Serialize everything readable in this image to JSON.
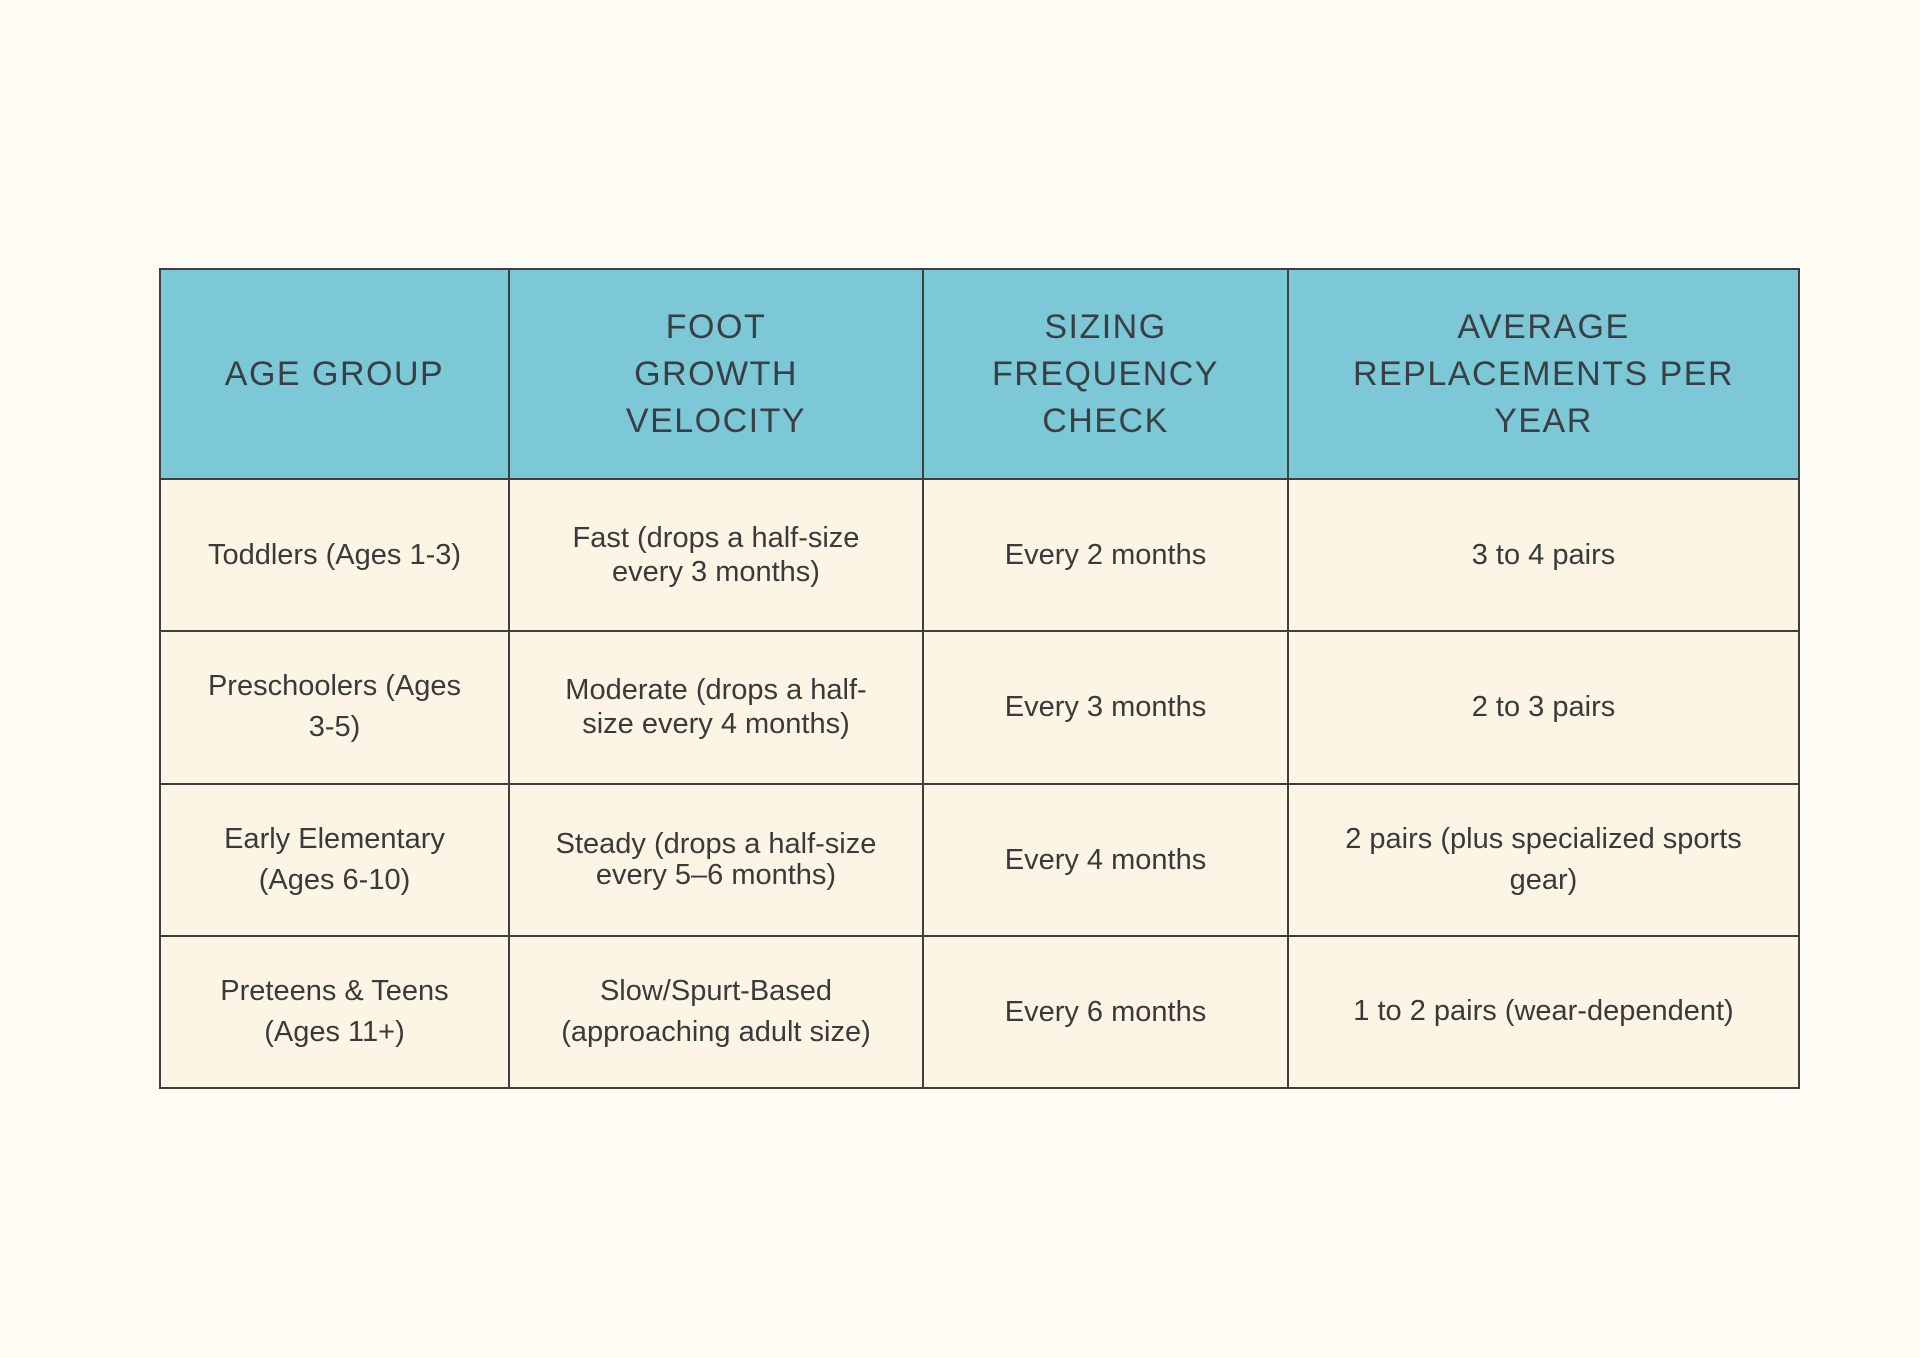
{
  "table": {
    "headers": [
      "AGE GROUP",
      "FOOT GROWTH VELOCITY",
      "SIZING FREQUENCY CHECK",
      "AVERAGE REPLACEMENTS PER YEAR"
    ],
    "rows": [
      [
        "Toddlers (Ages 1-3)",
        "Fast (drops a half-size every 3 months)",
        "Every 2 months",
        "3 to 4 pairs"
      ],
      [
        "Preschoolers (Ages 3-5)",
        "Moderate (drops a half-size every 4 months)",
        "Every 3 months",
        "2 to 3 pairs"
      ],
      [
        "Early Elementary (Ages 6-10)",
        "Steady (drops a half-size every 5–6 months)",
        "Every 4 months",
        "2 pairs (plus specialized sports gear)"
      ],
      [
        "Preteens & Teens (Ages 11+)",
        "Slow/Spurt-Based (approaching adult size)",
        "Every 6 months",
        "1 to 2 pairs (wear-dependent)"
      ]
    ]
  },
  "colors": {
    "page_background": "#fefcf5",
    "header_background": "#7cc8d6",
    "row_background": "#fcf5e5",
    "border": "#3f3f3f",
    "text": "#3a3a3a"
  }
}
